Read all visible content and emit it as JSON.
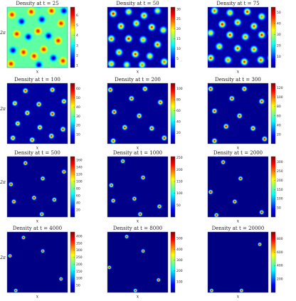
{
  "chart_data": [
    {
      "type": "heatmap",
      "title": "Density at t = 25",
      "xlabel": "x",
      "ylabel": "2π",
      "xlim": [
        0,
        6.28
      ],
      "ylim": [
        0,
        6.28
      ],
      "clim": [
        0.8,
        6.8
      ],
      "cticks": [
        1,
        2,
        3,
        4,
        5,
        6
      ],
      "background": 3.6,
      "x": [
        0.5,
        1.5,
        2.5,
        3.6,
        4.6,
        5.6,
        1.0,
        2.2,
        3.2,
        4.3,
        5.3,
        0.6,
        1.7,
        2.8,
        3.8,
        4.8,
        5.8,
        0.4,
        3.3,
        5.9
      ],
      "y": [
        5.5,
        4.8,
        5.8,
        5.0,
        5.9,
        4.6,
        3.5,
        3.2,
        3.8,
        3.3,
        2.8,
        1.8,
        1.6,
        1.2,
        1.9,
        1.0,
        0.7,
        0.4,
        0.3,
        5.9
      ],
      "values": [
        6,
        1,
        6,
        1,
        6,
        6,
        6,
        1,
        6,
        1,
        6,
        1,
        6,
        6,
        6,
        1,
        6,
        6,
        1,
        1
      ]
    },
    {
      "type": "heatmap",
      "title": "Density at t = 50",
      "xlabel": "x",
      "xlim": [
        0,
        6.28
      ],
      "ylim": [
        0,
        6.28
      ],
      "clim": [
        0.5,
        31
      ],
      "cticks": [
        5,
        10,
        15,
        20,
        25,
        30
      ],
      "background": 1.5,
      "x": [
        0.6,
        2.2,
        3.8,
        5.2,
        1.4,
        3.0,
        4.6,
        5.8,
        0.4,
        2.2,
        3.7,
        5.2,
        1.2,
        2.9,
        4.4,
        5.9,
        0.4,
        2.0,
        3.6
      ],
      "y": [
        5.6,
        5.8,
        5.4,
        5.9,
        4.3,
        4.6,
        4.2,
        3.9,
        3.0,
        3.0,
        2.9,
        2.4,
        1.6,
        1.4,
        1.2,
        0.6,
        0.4,
        0.3,
        0.3
      ],
      "values": [
        28,
        22,
        25,
        20,
        26,
        24,
        27,
        22,
        25,
        28,
        23,
        26,
        24,
        27,
        22,
        25,
        23,
        20,
        24
      ]
    },
    {
      "type": "heatmap",
      "title": "Density at t = 75",
      "xlabel": "x",
      "xlim": [
        0,
        6.28
      ],
      "ylim": [
        0,
        6.28
      ],
      "clim": [
        0,
        55
      ],
      "cticks": [
        10,
        20,
        30,
        40,
        50
      ],
      "background": 2,
      "x": [
        0.7,
        2.3,
        4.1,
        5.6,
        1.5,
        3.1,
        4.8,
        0.3,
        2.3,
        3.9,
        5.6,
        1.2,
        3.1,
        4.8,
        0.3,
        2.1,
        3.8,
        5.5
      ],
      "y": [
        5.9,
        5.7,
        5.8,
        5.3,
        4.5,
        4.7,
        4.3,
        3.6,
        3.4,
        3.2,
        3.4,
        2.2,
        2.0,
        1.9,
        1.0,
        0.8,
        0.6,
        0.8
      ],
      "values": [
        45,
        40,
        48,
        42,
        50,
        44,
        46,
        38,
        47,
        43,
        49,
        41,
        46,
        44,
        47,
        42,
        48,
        45
      ]
    },
    {
      "type": "heatmap",
      "title": "Density at t = 100",
      "xlabel": "x",
      "ylabel": "2π",
      "xlim": [
        0,
        6.28
      ],
      "ylim": [
        0,
        6.28
      ],
      "clim": [
        0,
        66
      ],
      "cticks": [
        10,
        20,
        30,
        40,
        50,
        60
      ],
      "background": 2,
      "x": [
        1.9,
        4.7,
        3.3,
        0.8,
        5.9,
        2.1,
        4.7,
        1.1,
        3.4,
        5.8,
        0.6,
        2.6,
        4.6
      ],
      "y": [
        5.5,
        5.6,
        4.1,
        4.2,
        4.4,
        3.2,
        3.1,
        2.1,
        1.7,
        1.5,
        0.6,
        0.4,
        0.8
      ],
      "values": [
        60,
        58,
        61,
        55,
        57,
        59,
        62,
        56,
        58,
        60,
        57,
        59,
        61
      ]
    },
    {
      "type": "heatmap",
      "title": "Density at t = 200",
      "xlabel": "x",
      "xlim": [
        0,
        6.28
      ],
      "ylim": [
        0,
        6.28
      ],
      "clim": [
        0,
        110
      ],
      "cticks": [
        20,
        40,
        60,
        80,
        100
      ],
      "background": 2,
      "x": [
        0.3,
        3.9,
        2.5,
        5.5,
        0.7,
        3.3,
        1.8,
        4.6,
        0.6,
        5.9
      ],
      "y": [
        5.6,
        5.7,
        4.7,
        4.3,
        3.3,
        2.9,
        1.7,
        1.6,
        0.3,
        0.6
      ],
      "values": [
        100,
        98,
        102,
        97,
        103,
        99,
        101,
        100,
        98,
        102
      ]
    },
    {
      "type": "heatmap",
      "title": "Density at t = 300",
      "xlabel": "x",
      "xlim": [
        0,
        6.28
      ],
      "ylim": [
        0,
        6.28
      ],
      "clim": [
        0,
        130
      ],
      "cticks": [
        20,
        40,
        60,
        80,
        100,
        120
      ],
      "background": 2,
      "x": [
        0.3,
        3.8,
        2.5,
        5.6,
        0.7,
        3.3,
        1.9,
        4.7,
        0.7,
        5.9
      ],
      "y": [
        5.7,
        5.7,
        4.7,
        4.4,
        3.4,
        2.9,
        1.8,
        1.6,
        0.3,
        0.5
      ],
      "values": [
        120,
        118,
        122,
        119,
        121,
        120,
        123,
        118,
        120,
        122
      ]
    },
    {
      "type": "heatmap",
      "title": "Density at t = 500",
      "xlabel": "x",
      "ylabel": "2π",
      "xlim": [
        0,
        6.28
      ],
      "ylim": [
        0,
        6.28
      ],
      "clim": [
        0,
        170
      ],
      "cticks": [
        20,
        40,
        60,
        80,
        100,
        120,
        140,
        160
      ],
      "background": 2,
      "x": [
        1.9,
        3.7,
        0.4,
        2.8,
        0.7,
        4.9,
        3.6,
        5.9
      ],
      "y": [
        5.6,
        4.0,
        3.4,
        2.0,
        1.6,
        1.8,
        0.3,
        4.7
      ],
      "values": [
        160,
        158,
        162,
        165,
        159,
        161,
        160,
        157
      ]
    },
    {
      "type": "heatmap",
      "title": "Density at t = 1000",
      "xlabel": "x",
      "xlim": [
        0,
        6.28
      ],
      "ylim": [
        0,
        6.28
      ],
      "clim": [
        0,
        255
      ],
      "cticks": [
        50,
        100,
        150,
        200,
        250
      ],
      "background": 2,
      "x": [
        1.6,
        3.7,
        0.4,
        2.8,
        5.4,
        3.4,
        0.6
      ],
      "y": [
        5.8,
        4.1,
        3.3,
        1.9,
        1.1,
        0.3,
        1.7
      ],
      "values": [
        240,
        245,
        238,
        242,
        240,
        244,
        236
      ]
    },
    {
      "type": "heatmap",
      "title": "Density at t = 2000",
      "xlabel": "x",
      "xlim": [
        0,
        6.28
      ],
      "ylim": [
        0,
        6.28
      ],
      "clim": [
        0,
        330
      ],
      "cticks": [
        50,
        100,
        150,
        200,
        250,
        300
      ],
      "background": 2,
      "x": [
        1.6,
        3.4,
        0.3,
        2.8,
        5.6,
        0.9
      ],
      "y": [
        5.7,
        4.0,
        2.6,
        1.6,
        0.5,
        0.2
      ],
      "values": [
        320,
        318,
        322,
        319,
        321,
        317
      ]
    },
    {
      "type": "heatmap",
      "title": "Density at t = 4000",
      "xlabel": "x",
      "ylabel": "2π",
      "xlim": [
        0,
        6.28
      ],
      "ylim": [
        0,
        6.28
      ],
      "clim": [
        0,
        430
      ],
      "cticks": [
        50,
        100,
        150,
        200,
        250,
        300,
        350,
        400
      ],
      "background": 2,
      "x": [
        1.7,
        3.7,
        0.3,
        5.6,
        0.9
      ],
      "y": [
        5.7,
        4.3,
        3.8,
        1.4,
        0.2
      ],
      "values": [
        420,
        418,
        415,
        422,
        419
      ]
    },
    {
      "type": "heatmap",
      "title": "Density at t = 8000",
      "xlabel": "x",
      "xlim": [
        0,
        6.28
      ],
      "ylim": [
        0,
        6.28
      ],
      "clim": [
        0,
        560
      ],
      "cticks": [
        100,
        200,
        300,
        400,
        500
      ],
      "background": 2,
      "x": [
        2.0,
        3.7,
        5.3,
        0.2,
        2.9
      ],
      "y": [
        5.8,
        4.3,
        1.3,
        2.6,
        0.2
      ],
      "values": [
        540,
        545,
        538,
        542,
        540
      ]
    },
    {
      "type": "heatmap",
      "title": "Density at t = 20000",
      "xlabel": "x",
      "xlim": [
        0,
        6.28
      ],
      "ylim": [
        0,
        6.28
      ],
      "clim": [
        0,
        900
      ],
      "cticks": [
        200,
        400,
        600,
        800
      ],
      "background": 2,
      "x": [
        0.4,
        3.5,
        5.4
      ],
      "y": [
        0.2,
        0.2,
        5.0
      ],
      "values": [
        880,
        870,
        860
      ]
    }
  ]
}
